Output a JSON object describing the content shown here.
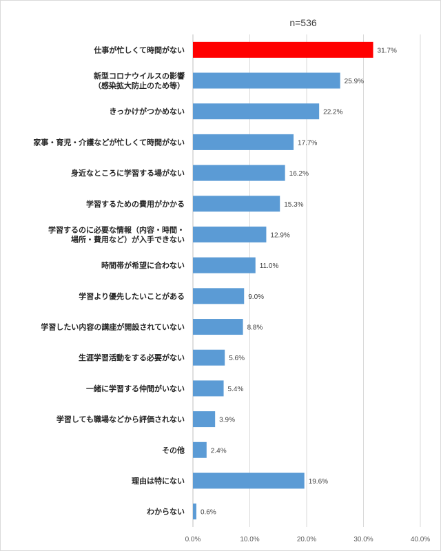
{
  "chart_data": {
    "type": "bar",
    "orientation": "horizontal",
    "note": "n=536",
    "categories": [
      [
        "仕事が忙しくて時間がない"
      ],
      [
        "新型コロナウイルスの影響",
        "（感染拡大防止のため等）"
      ],
      [
        "きっかけがつかめない"
      ],
      [
        "家事・育児・介護などが忙しくて時間がない"
      ],
      [
        "身近なところに学習する場がない"
      ],
      [
        "学習するための費用がかかる"
      ],
      [
        "学習するのに必要な情報（内容・時間・",
        "場所・費用など）が入手できない"
      ],
      [
        "時間帯が希望に合わない"
      ],
      [
        "学習より優先したいことがある"
      ],
      [
        "学習したい内容の講座が開設されていない"
      ],
      [
        "生涯学習活動をする必要がない"
      ],
      [
        "一緒に学習する仲間がいない"
      ],
      [
        "学習しても職場などから評価されない"
      ],
      [
        "その他"
      ],
      [
        "理由は特にない"
      ],
      [
        "わからない"
      ]
    ],
    "values": [
      31.7,
      25.9,
      22.2,
      17.7,
      16.2,
      15.3,
      12.9,
      11.0,
      9.0,
      8.8,
      5.6,
      5.4,
      3.9,
      2.4,
      19.6,
      0.6
    ],
    "value_labels": [
      "31.7%",
      "25.9%",
      "22.2%",
      "17.7%",
      "16.2%",
      "15.3%",
      "12.9%",
      "11.0%",
      "9.0%",
      "8.8%",
      "5.6%",
      "5.4%",
      "3.9%",
      "2.4%",
      "19.6%",
      "0.6%"
    ],
    "xlim": [
      0,
      40
    ],
    "xticks": [
      0,
      10,
      20,
      30,
      40
    ],
    "xtick_labels": [
      "0.0%",
      "10.0%",
      "20.0%",
      "30.0%",
      "40.0%"
    ],
    "grid": true,
    "colors": {
      "default": "#5b9bd5",
      "highlight": "#ff0000"
    },
    "highlight_index": 0
  }
}
